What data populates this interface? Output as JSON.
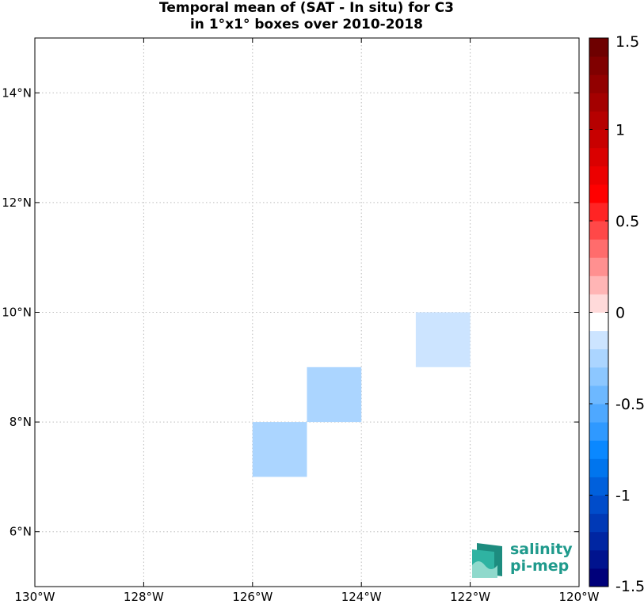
{
  "title": {
    "line1": "Temporal mean of (SAT - In situ) for C3",
    "line2": "in 1°x1° boxes over 2010-2018"
  },
  "chart_data": {
    "type": "heatmap",
    "title": "Temporal mean of (SAT - In situ) for C3 in 1°x1° boxes over 2010-2018",
    "xlim": [
      -130,
      -120
    ],
    "ylim": [
      5,
      15
    ],
    "x_ticks": [
      {
        "value": -130,
        "label": "130°W"
      },
      {
        "value": -128,
        "label": "128°W"
      },
      {
        "value": -126,
        "label": "126°W"
      },
      {
        "value": -124,
        "label": "124°W"
      },
      {
        "value": -122,
        "label": "122°W"
      },
      {
        "value": -120,
        "label": "120°W"
      }
    ],
    "y_ticks": [
      {
        "value": 6,
        "label": "6°N"
      },
      {
        "value": 8,
        "label": "8°N"
      },
      {
        "value": 10,
        "label": "10°N"
      },
      {
        "value": 12,
        "label": "12°N"
      },
      {
        "value": 14,
        "label": "14°N"
      }
    ],
    "grid": true,
    "cells": [
      {
        "lon": [
          -126,
          -125
        ],
        "lat": [
          7,
          8
        ],
        "value": -0.25
      },
      {
        "lon": [
          -125,
          -124
        ],
        "lat": [
          8,
          9
        ],
        "value": -0.25
      },
      {
        "lon": [
          -123,
          -122
        ],
        "lat": [
          9,
          10
        ],
        "value": -0.1
      }
    ],
    "colorbar": {
      "min": -1.5,
      "max": 1.5,
      "ticks": [
        {
          "value": 1.5,
          "label": "1.5"
        },
        {
          "value": 1,
          "label": "1"
        },
        {
          "value": 0.5,
          "label": "0.5"
        },
        {
          "value": 0,
          "label": "0"
        },
        {
          "value": -0.5,
          "label": "-0.5"
        },
        {
          "value": -1,
          "label": "-1"
        },
        {
          "value": -1.5,
          "label": "-1.5"
        }
      ],
      "colors": [
        "#00007a",
        "#00138e",
        "#0026a2",
        "#0039b6",
        "#004cca",
        "#0060dc",
        "#0075ee",
        "#0a88ff",
        "#2f99ff",
        "#4ea8ff",
        "#6db8ff",
        "#8cc7ff",
        "#abd5ff",
        "#cce4ff",
        "#ffffff",
        "#ffdada",
        "#ffb5b5",
        "#ff9090",
        "#ff6c6c",
        "#ff4848",
        "#ff2424",
        "#ff0000",
        "#ec0000",
        "#da0000",
        "#c80000",
        "#b60000",
        "#a40000",
        "#920000",
        "#800000",
        "#6e0000"
      ]
    }
  },
  "logo": {
    "line1": "salinity",
    "line2": "pi-mep"
  }
}
